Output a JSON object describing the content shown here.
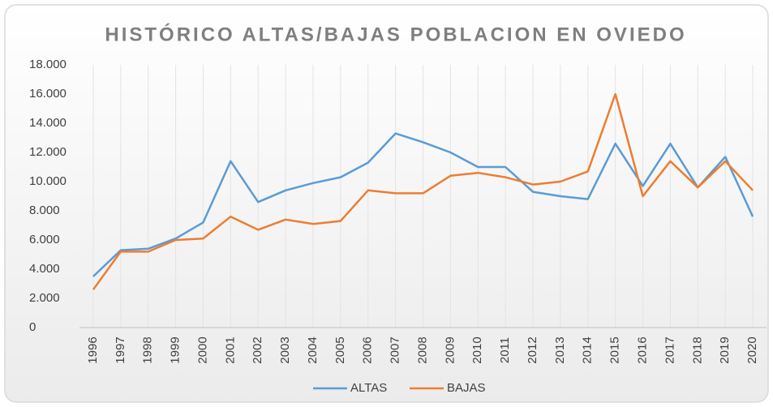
{
  "chart_data": {
    "type": "line",
    "title": "HISTÓRICO ALTAS/BAJAS POBLACION EN OVIEDO",
    "categories": [
      "1996",
      "1997",
      "1998",
      "1999",
      "2000",
      "2001",
      "2002",
      "2003",
      "2004",
      "2005",
      "2006",
      "2007",
      "2008",
      "2009",
      "2010",
      "2011",
      "2012",
      "2013",
      "2014",
      "2015",
      "2016",
      "2017",
      "2018",
      "2019",
      "2020"
    ],
    "series": [
      {
        "name": "ALTAS",
        "color": "#5b9bd5",
        "values": [
          3500,
          5300,
          5400,
          6100,
          7200,
          11400,
          8600,
          9400,
          9900,
          10300,
          11300,
          13300,
          12700,
          12000,
          11000,
          11000,
          9300,
          9000,
          8800,
          12600,
          9700,
          12600,
          9600,
          11700,
          7600
        ]
      },
      {
        "name": "BAJAS",
        "color": "#ed7d31",
        "values": [
          2600,
          5200,
          5200,
          6000,
          6100,
          7600,
          6700,
          7400,
          7100,
          7300,
          9400,
          9200,
          9200,
          10400,
          10600,
          10300,
          9800,
          10000,
          10700,
          16000,
          9000,
          11400,
          9600,
          11400,
          9400
        ]
      }
    ],
    "ylim": [
      0,
      18000
    ],
    "yticks": [
      0,
      {
        "value": 2000,
        "label": "2.000"
      },
      {
        "value": 4000,
        "label": "4.000"
      },
      {
        "value": 6000,
        "label": "6.000"
      },
      {
        "value": 8000,
        "label": "8.000"
      },
      {
        "value": 10000,
        "label": "10.000"
      },
      {
        "value": 12000,
        "label": "12.000"
      },
      {
        "value": 14000,
        "label": "14.000"
      },
      {
        "value": 16000,
        "label": "16.000"
      },
      {
        "value": 18000,
        "label": "18.000"
      }
    ],
    "legend": "bottom"
  }
}
